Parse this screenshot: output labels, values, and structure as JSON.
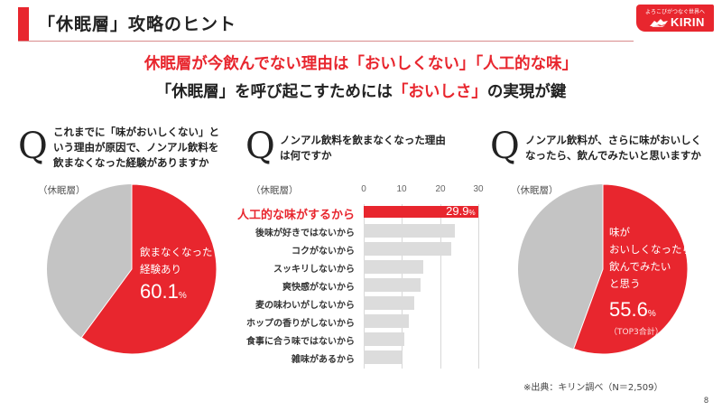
{
  "header": {
    "title": "「休眠層」攻略のヒント",
    "accent_color": "#e8262e"
  },
  "logo": {
    "tagline": "よろこびがつなぐ世界へ",
    "brand": "KIRIN"
  },
  "headline": {
    "line1": "休眠層が今飲んでない理由は「おいしくない」「人工的な味」",
    "line2_prefix": "「休眠層」を呼び起こすためには",
    "line2_highlight": "「おいしさ」",
    "line2_suffix": "の実現が鍵"
  },
  "questions": [
    {
      "mark": "Q",
      "lines": [
        "これまでに「味がおいしくない」と",
        "いう理由が原因で、ノンアル飲料を",
        "飲まなくなった経験がありますか"
      ]
    },
    {
      "mark": "Q",
      "lines": [
        "ノンアル飲料を飲まなくなった理由",
        "は何ですか"
      ]
    },
    {
      "mark": "Q",
      "lines": [
        "ノンアル飲料が、さらに味がおいしく",
        "なったら、飲んでみたいと思いますか"
      ]
    }
  ],
  "segment_label": "（休眠層）",
  "pie1": {
    "lines": [
      "飲まなくなった",
      "経験あり"
    ],
    "value": "60.1",
    "unit": "%"
  },
  "pie2": {
    "lines": [
      "味が",
      "おいしくなったら",
      "飲んでみたい",
      "と思う"
    ],
    "value": "55.6",
    "unit": "%",
    "note": "（TOP3合計）"
  },
  "bar_chart": {
    "ticks": [
      "0",
      "10",
      "20",
      "30"
    ],
    "top_value": "29.9",
    "top_unit": "%"
  },
  "chart_data": [
    {
      "type": "pie",
      "title": "これまでに「味がおいしくない」という理由が原因で、ノンアル飲料を飲まなくなった経験がありますか",
      "subtitle": "（休眠層）",
      "categories": [
        "飲まなくなった経験あり",
        "その他"
      ],
      "values": [
        60.1,
        39.9
      ],
      "colors": [
        "#e8262e",
        "#c4c4c4"
      ]
    },
    {
      "type": "bar",
      "orientation": "horizontal",
      "title": "ノンアル飲料を飲まなくなった理由は何ですか",
      "subtitle": "（休眠層）",
      "categories": [
        "人工的な味がするから",
        "後味が好きではないから",
        "コクがないから",
        "スッキリしないから",
        "爽快感がないから",
        "麦の味わいがしないから",
        "ホップの香りがしないから",
        "食事に合う味ではないから",
        "雑味があるから"
      ],
      "values": [
        29.9,
        23.8,
        22.9,
        15.5,
        14.8,
        13.2,
        11.7,
        10.7,
        10.0
      ],
      "xlabel": "",
      "ylabel": "",
      "xlim": [
        0,
        30
      ],
      "xticks": [
        0,
        10,
        20,
        30
      ],
      "grid": true,
      "highlight_index": 0,
      "highlight_color": "#e8262e",
      "bar_color": "#dcdcdc"
    },
    {
      "type": "pie",
      "title": "ノンアル飲料が、さらに味がおいしくなったら、飲んでみたいと思いますか",
      "subtitle": "（休眠層）",
      "categories": [
        "味がおいしくなったら飲んでみたいと思う（TOP3合計）",
        "その他"
      ],
      "values": [
        55.6,
        44.4
      ],
      "colors": [
        "#e8262e",
        "#c4c4c4"
      ]
    }
  ],
  "footer": {
    "source": "※出典：キリン調べ（N＝2,509）",
    "page": "8"
  }
}
